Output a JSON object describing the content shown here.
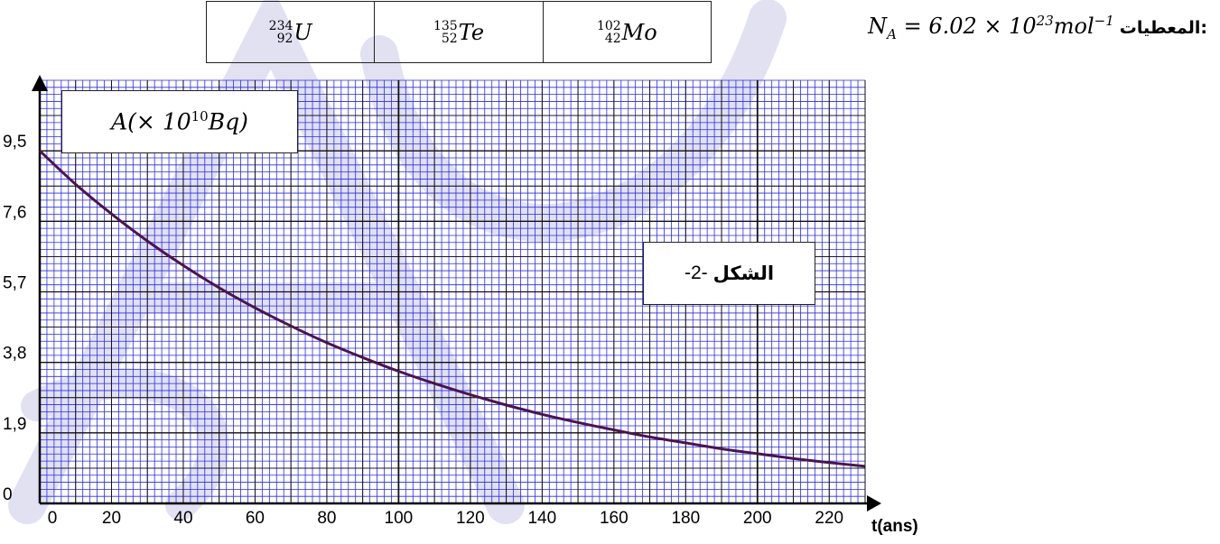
{
  "nuclides": [
    {
      "mass": "234",
      "atomic": "92",
      "symbol": "U"
    },
    {
      "mass": "135",
      "atomic": "52",
      "symbol": "Te"
    },
    {
      "mass": "102",
      "atomic": "42",
      "symbol": "Mo"
    }
  ],
  "given": {
    "label": "المعطيات:",
    "symbol": "N",
    "subscript": "A",
    "equation": " = 6.02 × 10",
    "exponent": "23",
    "unit": "mol",
    "unit_exponent": "−1"
  },
  "figure_label": {
    "word": "الشكل",
    "number": "-2-"
  },
  "colors": {
    "grid": "#2a2af0",
    "curve": "#4a1450",
    "axis": "#000000",
    "watermark": "#c9c9e8"
  },
  "chart_data": {
    "type": "line",
    "title": "",
    "ylabel": {
      "base": "A(× 10",
      "exp": "10",
      "unit": "Bq)"
    },
    "xlabel": "t(ans)",
    "x_ticks": [
      0,
      20,
      40,
      60,
      80,
      100,
      120,
      140,
      160,
      180,
      200,
      220
    ],
    "x_tick_labels": [
      "0",
      "20",
      "40",
      "60",
      "80",
      "100",
      "120",
      "140",
      "160",
      "180",
      "200",
      "220"
    ],
    "y_ticks": [
      0,
      1.9,
      3.8,
      5.7,
      7.6,
      9.5
    ],
    "y_tick_labels": [
      "0",
      "1,9",
      "3,8",
      "5,7",
      "7,6",
      "9,5"
    ],
    "xlim": [
      0,
      230
    ],
    "ylim": [
      0,
      11.4
    ],
    "grid": true,
    "series": [
      {
        "x": [
          0,
          10,
          20,
          30,
          40,
          50,
          60,
          70,
          80,
          90,
          100,
          110,
          120,
          130,
          140,
          150,
          160,
          170,
          180,
          190,
          200,
          210,
          220,
          230
        ],
        "y": [
          9.5,
          8.6,
          7.8,
          7.07,
          6.41,
          5.81,
          5.27,
          4.78,
          4.33,
          3.93,
          3.56,
          3.23,
          2.93,
          2.65,
          2.4,
          2.18,
          1.98,
          1.79,
          1.63,
          1.47,
          1.34,
          1.21,
          1.1,
          1.0
        ]
      }
    ]
  }
}
